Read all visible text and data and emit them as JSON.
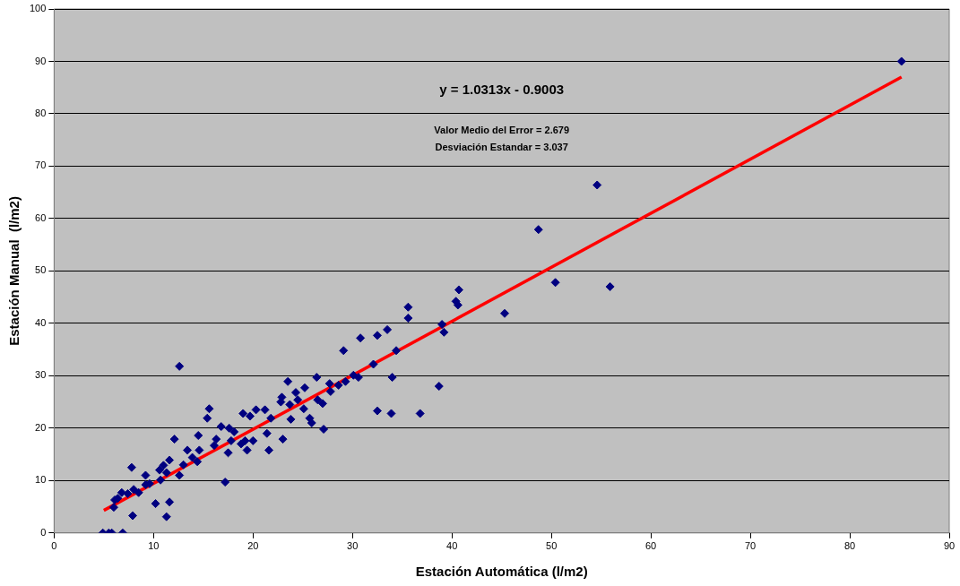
{
  "chart_data": {
    "type": "scatter",
    "xlabel": "Estación Automática (l/m2)",
    "ylabel": "Estación Manual  (l/m2)",
    "annotations": [
      "y = 1.0313x - 0.9003",
      "Valor Medio del Error = 2.679",
      "Desviación Estandar = 3.037"
    ],
    "xlim": [
      0,
      90
    ],
    "xticks": [
      0,
      10,
      20,
      30,
      40,
      50,
      60,
      70,
      80,
      90
    ],
    "ylim": [
      0,
      100
    ],
    "yticks": [
      0,
      10,
      20,
      30,
      40,
      50,
      60,
      70,
      80,
      90,
      100
    ],
    "grid": "y",
    "legend": false,
    "marker": "diamond",
    "series": [
      {
        "color": "#000080",
        "x": [
          4.9,
          5.5,
          5.8,
          6.9,
          85.2,
          54.6,
          48.7,
          50.4,
          55.9,
          45.3,
          40.7,
          40.4,
          40.6,
          39.0,
          39.2,
          38.7,
          35.6,
          35.6,
          36.8,
          34.4,
          34.0,
          33.9,
          33.5,
          32.5,
          32.5,
          32.1,
          30.8,
          29.1,
          30.6,
          30.1,
          29.3,
          28.6,
          27.8,
          27.7,
          27.0,
          27.1,
          26.4,
          26.5,
          25.7,
          25.9,
          25.2,
          25.1,
          24.5,
          24.3,
          23.7,
          23.8,
          23.5,
          22.9,
          23.0,
          22.8,
          21.6,
          21.8,
          21.2,
          21.4,
          20.3,
          20.0,
          19.7,
          19.0,
          19.2,
          18.8,
          19.4,
          18.1,
          17.8,
          17.6,
          17.5,
          17.2,
          16.8,
          16.3,
          16.1,
          15.6,
          15.4,
          14.5,
          14.6,
          14.4,
          13.9,
          13.4,
          13.0,
          12.6,
          12.6,
          12.1,
          11.6,
          11.0,
          11.3,
          10.6,
          10.7,
          11.6,
          11.3,
          10.2,
          9.6,
          9.2,
          9.2,
          8.5,
          7.8,
          8.0,
          7.9,
          7.4,
          6.8,
          6.4,
          6.1,
          6.0
        ],
        "values": [
          0,
          0,
          0,
          0,
          90,
          66.4,
          57.9,
          47.8,
          47.0,
          41.9,
          46.4,
          44.2,
          43.5,
          39.8,
          38.3,
          28.0,
          43.1,
          41.0,
          22.8,
          34.8,
          29.7,
          22.8,
          38.8,
          37.7,
          23.3,
          32.2,
          37.2,
          34.8,
          29.7,
          30.1,
          28.9,
          28.2,
          27.0,
          28.5,
          24.7,
          19.8,
          29.7,
          25.4,
          21.9,
          21.0,
          27.7,
          23.7,
          25.4,
          26.8,
          24.5,
          21.7,
          28.9,
          25.9,
          17.9,
          25.0,
          15.8,
          21.9,
          23.5,
          19.0,
          23.5,
          17.6,
          22.3,
          22.8,
          17.6,
          17.0,
          15.8,
          19.3,
          17.6,
          20.0,
          15.3,
          9.7,
          20.3,
          17.9,
          16.7,
          23.7,
          21.9,
          18.6,
          15.8,
          13.6,
          14.4,
          15.8,
          13.0,
          31.8,
          11.0,
          17.9,
          13.9,
          12.9,
          11.5,
          12.0,
          10.1,
          5.9,
          3.1,
          5.6,
          9.4,
          11.0,
          9.2,
          7.7,
          12.5,
          8.3,
          3.3,
          7.5,
          7.7,
          6.6,
          6.3,
          4.9
        ]
      },
      {
        "type": "line",
        "color": "#ff0000",
        "marker": "none",
        "x": [
          5,
          85.2
        ],
        "values": [
          4.3,
          87.0
        ]
      }
    ]
  }
}
